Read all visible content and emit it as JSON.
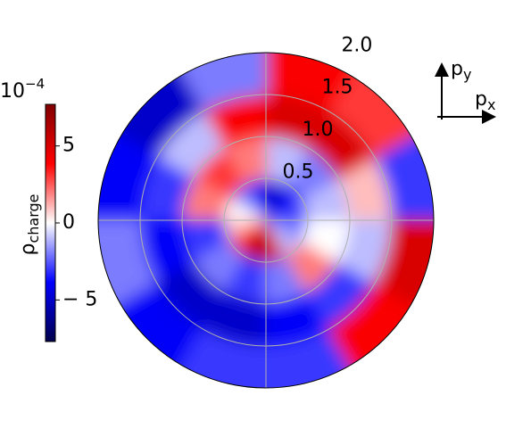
{
  "chart_data": {
    "type": "polar-heatmap",
    "r_edges": [
      0,
      0.5,
      1,
      1.5,
      2
    ],
    "theta_edges": [
      0,
      30,
      60,
      90,
      120,
      150,
      180,
      210,
      240,
      270,
      300,
      330,
      360
    ],
    "values": [
      [
        -3,
        -4,
        -5,
        -4,
        -2,
        0,
        1,
        4,
        6,
        5,
        -1,
        -2
      ],
      [
        -1,
        -2,
        -1,
        2,
        3,
        2,
        -3,
        -2,
        -3,
        -2,
        2,
        0
      ],
      [
        1,
        5,
        5,
        4,
        -1,
        -3,
        -4,
        -5,
        -5,
        -4,
        -3,
        -1
      ],
      [
        -3,
        3,
        4,
        -2,
        -5,
        -4,
        -2,
        -4,
        -3,
        -3,
        4,
        5
      ]
    ],
    "rlim": [
      0,
      2
    ],
    "rticks": [
      0.5,
      {
        "value": 1,
        "label": "1.0"
      },
      1.5,
      {
        "value": 2,
        "label": "2.0"
      }
    ],
    "thetagrid": [
      0,
      90,
      180,
      270
    ],
    "colormap": [
      "#00004c",
      "#0000ff",
      "#ffffff",
      "#ff0000",
      "#800000"
    ],
    "clim": [
      -7.7,
      7.7
    ],
    "cticks": [
      {
        "value": -5,
        "label": "− 5"
      },
      0,
      5
    ],
    "colorbar_label": {
      "symbol": "ρ",
      "subscript": "charge"
    },
    "offset_label": {
      "base": "10",
      "exponent": "−4"
    },
    "axes_labels": {
      "y": {
        "symbol": "p",
        "subscript": "y"
      },
      "x": {
        "symbol": "p",
        "subscript": "x"
      }
    }
  }
}
